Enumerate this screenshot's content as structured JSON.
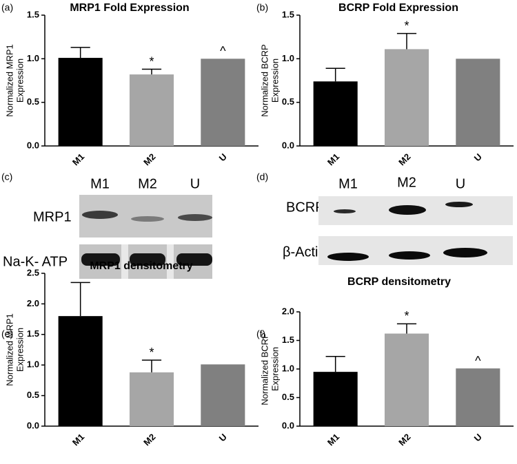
{
  "chart_data": [
    {
      "type": "bar",
      "panel": "(a)",
      "title": "MRP1 Fold Expression",
      "ylabel": [
        "Normalized MRP1",
        "Expression"
      ],
      "categories": [
        "M1",
        "M2",
        "U"
      ],
      "values": [
        1.01,
        0.82,
        1.0
      ],
      "errors": [
        0.12,
        0.06,
        null
      ],
      "annotations": [
        null,
        "*",
        "^"
      ],
      "colors": [
        "#000000",
        "#a6a6a6",
        "#808080"
      ],
      "ylim": [
        0,
        1.5
      ],
      "yticks": [
        {
          "value": 0,
          "label": "0.0"
        },
        {
          "value": 0.5,
          "label": "0.5"
        },
        {
          "value": 1,
          "label": "1.0"
        },
        {
          "value": 1.5,
          "label": "1.5"
        }
      ]
    },
    {
      "type": "bar",
      "panel": "(b)",
      "title": "BCRP Fold Expression",
      "ylabel": [
        "Normalized BCRP",
        "Expression"
      ],
      "categories": [
        "M1",
        "M2",
        "U"
      ],
      "values": [
        0.74,
        1.11,
        1.0
      ],
      "errors": [
        0.15,
        0.18,
        null
      ],
      "annotations": [
        null,
        "*",
        null
      ],
      "colors": [
        "#000000",
        "#a6a6a6",
        "#808080"
      ],
      "ylim": [
        0,
        1.5
      ],
      "yticks": [
        {
          "value": 0,
          "label": "0.0"
        },
        {
          "value": 0.5,
          "label": "0.5"
        },
        {
          "value": 1,
          "label": "1.0"
        },
        {
          "value": 1.5,
          "label": "1.5"
        }
      ]
    },
    {
      "type": "bar",
      "panel": "(e)",
      "title": "MRP1 densitometry",
      "ylabel": [
        "Normalized MRP1",
        "Expression"
      ],
      "categories": [
        "M1",
        "M2",
        "U"
      ],
      "values": [
        1.8,
        0.88,
        1.01
      ],
      "errors": [
        0.55,
        0.2,
        null
      ],
      "annotations": [
        null,
        "*",
        null
      ],
      "colors": [
        "#000000",
        "#a6a6a6",
        "#808080"
      ],
      "ylim": [
        0,
        2.5
      ],
      "yticks": [
        {
          "value": 0,
          "label": "0.0"
        },
        {
          "value": 0.5,
          "label": "0.5"
        },
        {
          "value": 1,
          "label": "1.0"
        },
        {
          "value": 1.5,
          "label": "1.5"
        },
        {
          "value": 2,
          "label": "2.0"
        },
        {
          "value": 2.5,
          "label": "2.5"
        }
      ]
    },
    {
      "type": "bar",
      "panel": "(f)",
      "title": "BCRP densitometry",
      "ylabel": [
        "Normalized BCRP",
        "Expression"
      ],
      "categories": [
        "M1",
        "M2",
        "U"
      ],
      "values": [
        0.95,
        1.62,
        1.01
      ],
      "errors": [
        0.27,
        0.17,
        null
      ],
      "annotations": [
        null,
        "*",
        "^"
      ],
      "colors": [
        "#000000",
        "#a6a6a6",
        "#808080"
      ],
      "ylim": [
        0,
        2.0
      ],
      "yticks": [
        {
          "value": 0,
          "label": "0.0"
        },
        {
          "value": 0.5,
          "label": "0.5"
        },
        {
          "value": 1,
          "label": "1.0"
        },
        {
          "value": 1.5,
          "label": "1.5"
        },
        {
          "value": 2,
          "label": "2.0"
        }
      ]
    }
  ],
  "blots": [
    {
      "panel": "(c)",
      "lanes": [
        "M1",
        "M2",
        "U"
      ],
      "rows": [
        "MRP1",
        "Na-K- ATP"
      ]
    },
    {
      "panel": "(d)",
      "lanes": [
        "M1",
        "M2",
        "U"
      ],
      "rows": [
        "BCRP",
        "β-Actin"
      ]
    }
  ]
}
